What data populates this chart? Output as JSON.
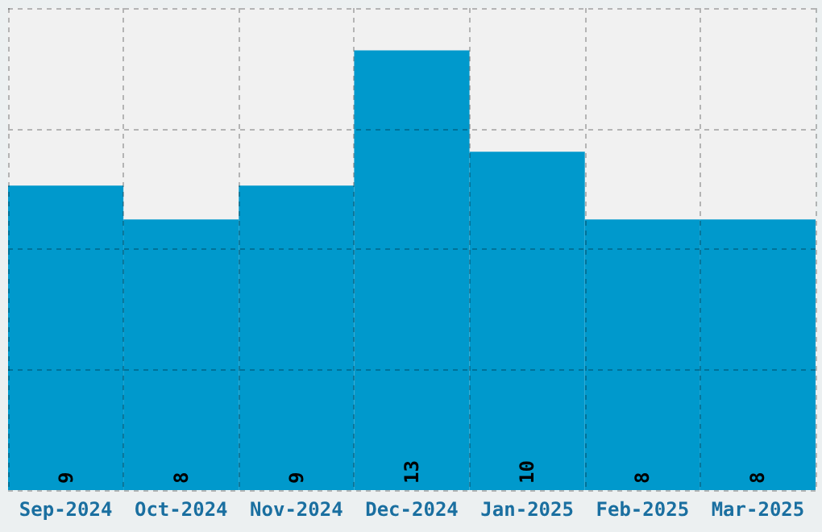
{
  "chart_data": {
    "type": "bar",
    "categories": [
      "Sep-2024",
      "Oct-2024",
      "Nov-2024",
      "Dec-2024",
      "Jan-2025",
      "Feb-2025",
      "Mar-2025"
    ],
    "values": [
      9,
      8,
      9,
      13,
      10,
      8,
      8
    ],
    "color": "#0099cc",
    "ylim": [
      0,
      14.25
    ],
    "yticks": [
      {
        "value": 0,
        "label": null
      },
      {
        "value": 3.5625,
        "label": null
      },
      {
        "value": 7.125,
        "label": null
      },
      {
        "value": 10.6875,
        "label": null
      },
      {
        "value": 14.25,
        "label": null
      }
    ],
    "grid": true,
    "data_labels": true,
    "tick_labels": "x"
  }
}
